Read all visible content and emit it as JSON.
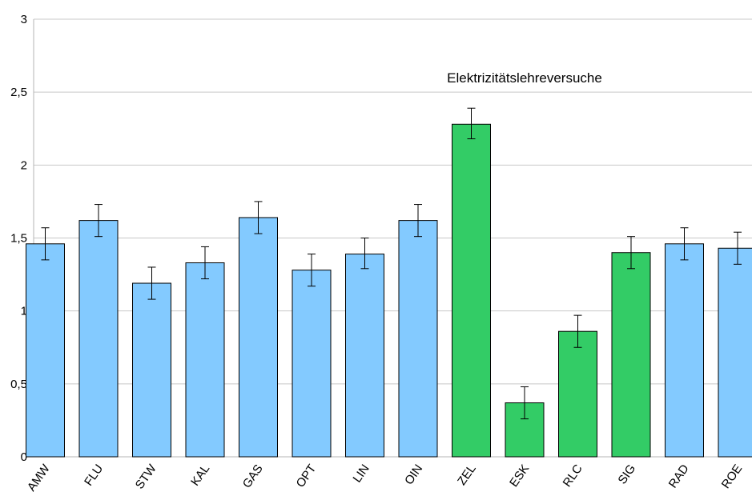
{
  "chart_data": {
    "type": "bar",
    "categories": [
      "AMW",
      "FLU",
      "STW",
      "KAL",
      "GAS",
      "OPT",
      "LIN",
      "OIN",
      "ZEL",
      "ESK",
      "RLC",
      "SIG",
      "RAD",
      "ROE"
    ],
    "values": [
      1.46,
      1.62,
      1.19,
      1.33,
      1.64,
      1.28,
      1.39,
      1.62,
      2.28,
      0.37,
      0.86,
      1.4,
      1.46,
      1.43
    ],
    "error_low": [
      1.35,
      1.51,
      1.08,
      1.22,
      1.53,
      1.17,
      1.29,
      1.51,
      2.18,
      0.26,
      0.75,
      1.29,
      1.35,
      1.32
    ],
    "error_high": [
      1.57,
      1.73,
      1.3,
      1.44,
      1.75,
      1.39,
      1.5,
      1.73,
      2.39,
      0.48,
      0.97,
      1.51,
      1.57,
      1.54
    ],
    "groups": [
      "default",
      "default",
      "default",
      "default",
      "default",
      "default",
      "default",
      "default",
      "highlight",
      "highlight",
      "highlight",
      "highlight",
      "default",
      "default"
    ],
    "annotations": [
      {
        "text": "Elektrizitätslehreversuche",
        "x": "ESK",
        "y": 2.6
      }
    ],
    "y_ticks": [
      "0",
      "0,5",
      "1",
      "1,5",
      "2",
      "2,5",
      "3"
    ],
    "ylim": [
      0,
      3
    ],
    "grid": true,
    "colors": {
      "default": "#83caff",
      "highlight": "#33cc66",
      "grid": "#c8c8c8",
      "axis": "#b4b4b4"
    }
  }
}
